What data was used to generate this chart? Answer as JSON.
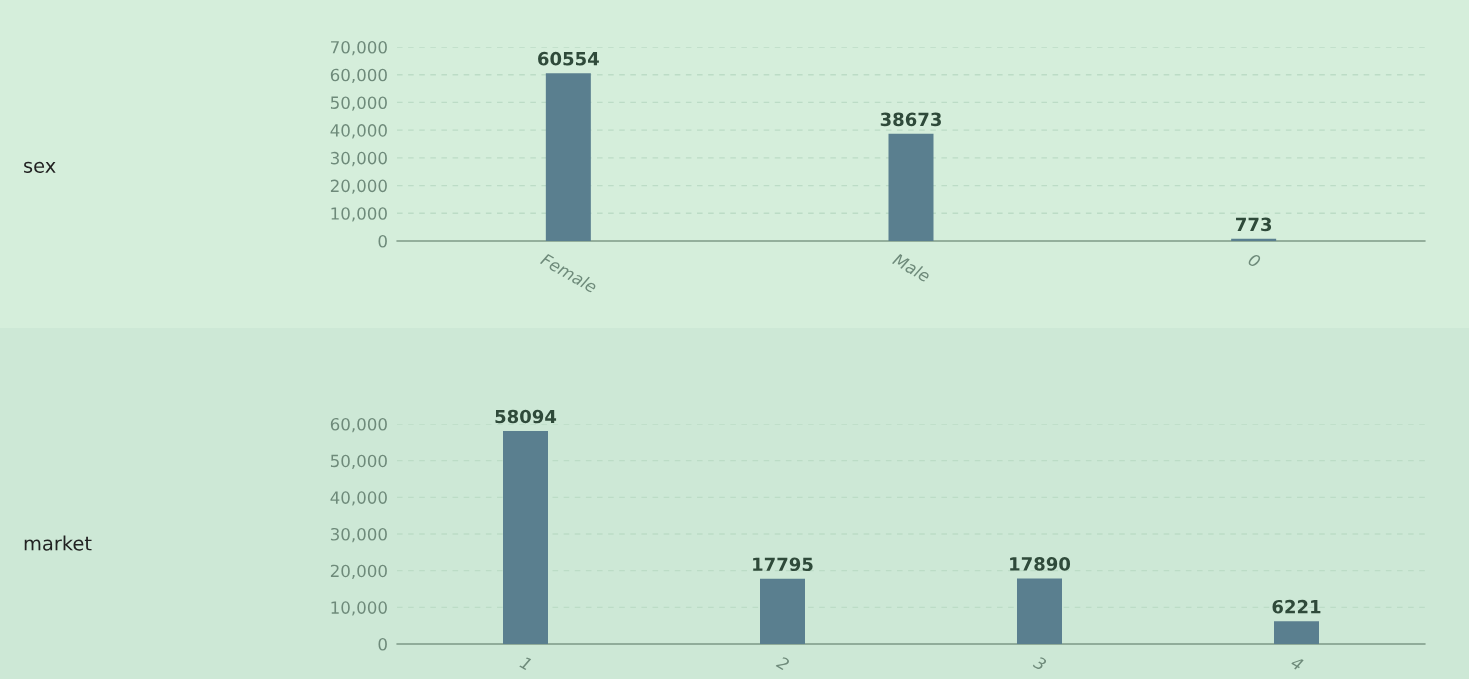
{
  "chart_data": [
    {
      "type": "bar",
      "ylabel": "sex",
      "categories": [
        "Female",
        "Male",
        "0"
      ],
      "values": [
        60554,
        38673,
        773
      ],
      "color": "#5a7f8f",
      "ylim": [
        0,
        70000
      ],
      "yticks": [
        {
          "value": 0,
          "label": "0"
        },
        {
          "value": 10000,
          "label": "10,000"
        },
        {
          "value": 20000,
          "label": "20,000"
        },
        {
          "value": 30000,
          "label": "30,000"
        },
        {
          "value": 40000,
          "label": "40,000"
        },
        {
          "value": 50000,
          "label": "50,000"
        },
        {
          "value": 60000,
          "label": "60,000"
        },
        {
          "value": 70000,
          "label": "70,000"
        }
      ],
      "grid": "y",
      "data_labels": true,
      "legend": false
    },
    {
      "type": "bar",
      "ylabel": "market",
      "categories": [
        "1",
        "2",
        "3",
        "4"
      ],
      "values": [
        58094,
        17795,
        17890,
        6221
      ],
      "color": "#5a7f8f",
      "ylim": [
        0,
        60000
      ],
      "yticks": [
        {
          "value": 0,
          "label": "0"
        },
        {
          "value": 10000,
          "label": "10,000"
        },
        {
          "value": 20000,
          "label": "20,000"
        },
        {
          "value": 30000,
          "label": "30,000"
        },
        {
          "value": 40000,
          "label": "40,000"
        },
        {
          "value": 50000,
          "label": "50,000"
        },
        {
          "value": 60000,
          "label": "60,000"
        }
      ],
      "grid": "y",
      "data_labels": true,
      "legend": false
    }
  ]
}
